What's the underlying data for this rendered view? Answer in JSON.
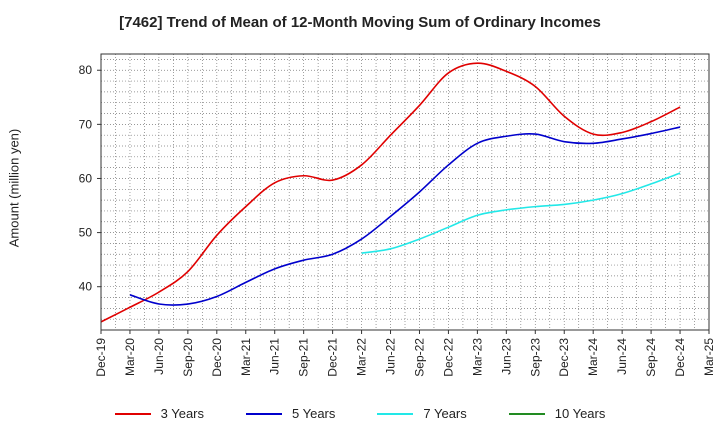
{
  "chart_data": {
    "type": "line",
    "title": "[7462]  Trend of Mean of 12-Month Moving Sum of Ordinary Incomes",
    "xlabel": "",
    "ylabel": "Amount (million yen)",
    "ylim": [
      32,
      83
    ],
    "yticks": [
      40,
      50,
      60,
      70,
      80
    ],
    "grid": true,
    "legend_position": "bottom",
    "categories": [
      "Dec-19",
      "Mar-20",
      "Jun-20",
      "Sep-20",
      "Dec-20",
      "Mar-21",
      "Jun-21",
      "Sep-21",
      "Dec-21",
      "Mar-22",
      "Jun-22",
      "Sep-22",
      "Dec-22",
      "Mar-23",
      "Jun-23",
      "Sep-23",
      "Dec-23",
      "Mar-24",
      "Jun-24",
      "Sep-24",
      "Dec-24",
      "Mar-25"
    ],
    "series": [
      {
        "name": "3 Years",
        "color": "#e00000",
        "values": [
          33.5,
          36.2,
          39.0,
          42.8,
          49.5,
          54.8,
          59.2,
          60.5,
          59.7,
          62.5,
          68.0,
          73.5,
          79.5,
          81.3,
          79.8,
          77.0,
          71.5,
          68.2,
          68.5,
          70.5,
          73.2,
          null
        ]
      },
      {
        "name": "5 Years",
        "color": "#0000cc",
        "values": [
          null,
          38.5,
          36.8,
          36.8,
          38.2,
          40.8,
          43.3,
          44.9,
          46.0,
          48.8,
          53.0,
          57.5,
          62.5,
          66.5,
          67.8,
          68.2,
          66.8,
          66.5,
          67.3,
          68.3,
          69.5,
          null
        ]
      },
      {
        "name": "7 Years",
        "color": "#22e8e8",
        "values": [
          null,
          null,
          null,
          null,
          null,
          null,
          null,
          null,
          null,
          46.2,
          47.0,
          48.8,
          51.0,
          53.2,
          54.2,
          54.8,
          55.2,
          56.0,
          57.2,
          59.0,
          61.0,
          null
        ]
      },
      {
        "name": "10 Years",
        "color": "#228b22",
        "values": [
          null,
          null,
          null,
          null,
          null,
          null,
          null,
          null,
          null,
          null,
          null,
          null,
          null,
          null,
          null,
          null,
          null,
          null,
          null,
          null,
          null,
          null
        ]
      }
    ]
  }
}
